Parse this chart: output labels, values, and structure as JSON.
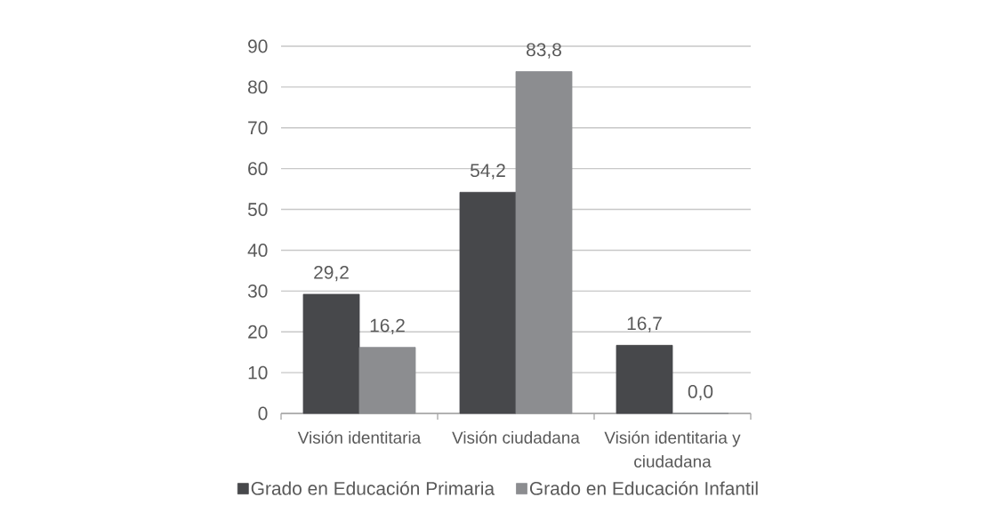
{
  "chart_data": {
    "type": "bar",
    "categories": [
      "Visión identitaria",
      "Visión ciudadana",
      "Visión identitaria y ciudadana"
    ],
    "series": [
      {
        "name": "Grado en Educación Primaria",
        "color": "#47484b",
        "values": [
          29.2,
          54.2,
          16.7
        ],
        "value_labels": [
          "29,2",
          "54,2",
          "16,7"
        ]
      },
      {
        "name": "Grado en Educación Infantil",
        "color": "#8c8d90",
        "values": [
          16.2,
          83.8,
          0.0
        ],
        "value_labels": [
          "16,2",
          "83,8",
          "0,0"
        ]
      }
    ],
    "ylim": [
      0,
      90
    ],
    "yticks": [
      0,
      10,
      20,
      30,
      40,
      50,
      60,
      70,
      80,
      90
    ],
    "grid": "y",
    "legend": "bottom"
  }
}
